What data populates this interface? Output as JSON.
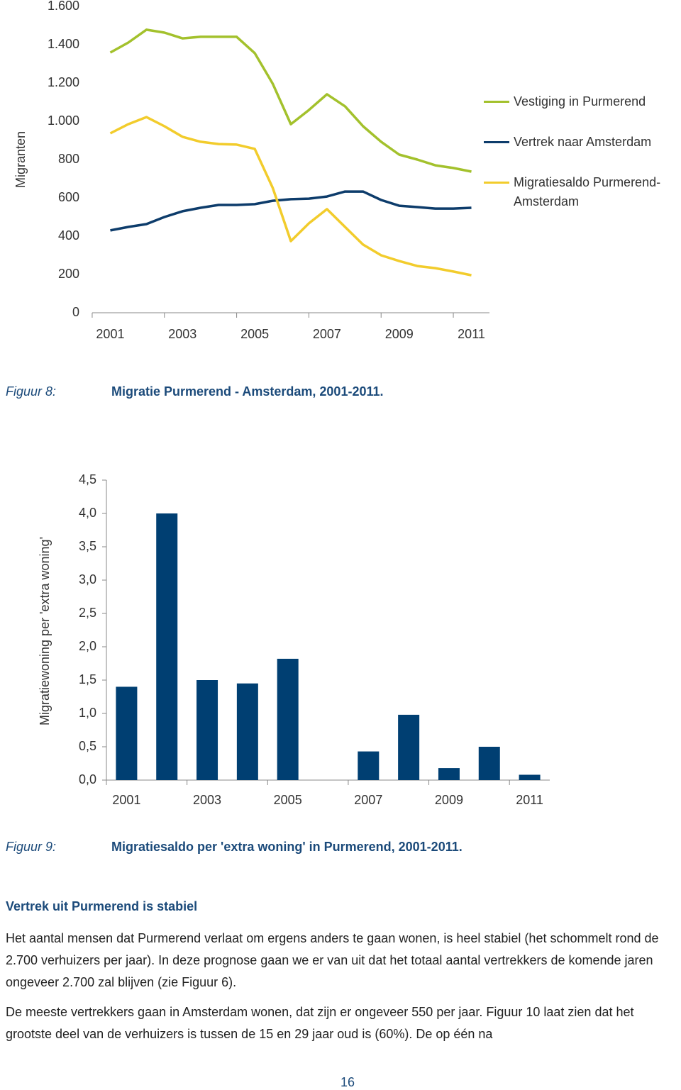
{
  "chart_data": [
    {
      "type": "line",
      "ylabel": "Migranten",
      "x": [
        2001,
        2001.5,
        2002,
        2002.5,
        2003,
        2003.5,
        2004,
        2004.5,
        2005,
        2005.5,
        2006,
        2006.5,
        2007,
        2007.5,
        2008,
        2008.5,
        2009,
        2009.5,
        2010,
        2010.5,
        2011
      ],
      "xlim": [
        2000.5,
        2011.5
      ],
      "xticks": [
        2001,
        2003,
        2005,
        2007,
        2009,
        2011
      ],
      "ylim": [
        0,
        1600
      ],
      "yticks": [
        0,
        200,
        400,
        600,
        800,
        {
          "value": 1000,
          "label": "1.000"
        },
        {
          "value": 1200,
          "label": "1.200"
        },
        {
          "value": 1400,
          "label": "1.400"
        },
        {
          "value": 1600,
          "label": "1.600"
        }
      ],
      "legend": "right",
      "series": [
        {
          "name": "Vestiging in Purmerend",
          "color": "#a3c12c",
          "values": [
            1359,
            1411,
            1478,
            1463,
            1433,
            1441,
            1441,
            1441,
            1356,
            1196,
            985,
            1059,
            1141,
            1078,
            974,
            893,
            826,
            800,
            770,
            756,
            737
          ]
        },
        {
          "name": "Vertrek naar Amsterdam",
          "color": "#0d3c6b",
          "values": [
            430,
            448,
            463,
            500,
            530,
            548,
            563,
            563,
            567,
            585,
            593,
            596,
            607,
            633,
            633,
            589,
            559,
            552,
            544,
            544,
            548
          ]
        },
        {
          "name": "Migratiesaldo Purmerend-Amsterdam",
          "color": "#f2cc2c",
          "values": [
            937,
            985,
            1022,
            974,
            919,
            893,
            881,
            878,
            856,
            652,
            374,
            467,
            541,
            448,
            356,
            300,
            270,
            244,
            233,
            215,
            196
          ]
        }
      ]
    },
    {
      "type": "bar",
      "ylabel": "Migratiewoning per 'extra woning'",
      "categories": [
        "2001",
        null,
        "2003",
        null,
        "2005",
        null,
        "2007",
        null,
        "2009",
        null,
        "2011"
      ],
      "values": [
        1.4,
        4.0,
        1.5,
        1.45,
        1.82,
        0,
        0.43,
        0.98,
        0.18,
        0.5,
        0.08
      ],
      "color": "#003f72",
      "ylim": [
        0,
        4.5
      ],
      "yticks": [
        {
          "value": 0,
          "label": "0,0"
        },
        {
          "value": 0.5,
          "label": "0,5"
        },
        {
          "value": 1,
          "label": "1,0"
        },
        {
          "value": 1.5,
          "label": "1,5"
        },
        {
          "value": 2,
          "label": "2,0"
        },
        {
          "value": 2.5,
          "label": "2,5"
        },
        {
          "value": 3,
          "label": "3,0"
        },
        {
          "value": 3.5,
          "label": "3,5"
        },
        {
          "value": 4,
          "label": "4,0"
        },
        {
          "value": 4.5,
          "label": "4,5"
        }
      ]
    }
  ],
  "figures": [
    {
      "label": "Figuur 8:",
      "caption": "Migratie Purmerend - Amsterdam, 2001-2011."
    },
    {
      "label": "Figuur 9:",
      "caption": "Migratiesaldo per 'extra woning' in Purmerend, 2001-2011."
    }
  ],
  "section": {
    "heading": "Vertrek uit Purmerend is stabiel",
    "paragraphs": [
      "Het aantal mensen dat Purmerend verlaat om ergens anders te gaan wonen, is heel stabiel (het schommelt rond de 2.700 verhuizers per jaar). In deze prognose gaan we er van uit dat het totaal aantal vertrekkers de komende jaren ongeveer 2.700 zal blijven (zie Figuur 6).",
      "De meeste vertrekkers gaan in Amsterdam wonen, dat zijn er ongeveer 550 per jaar. Figuur 10 laat zien dat het grootste deel van de verhuizers is tussen de 15 en 29 jaar oud is (60%). De op één na"
    ]
  },
  "page_number": "16"
}
